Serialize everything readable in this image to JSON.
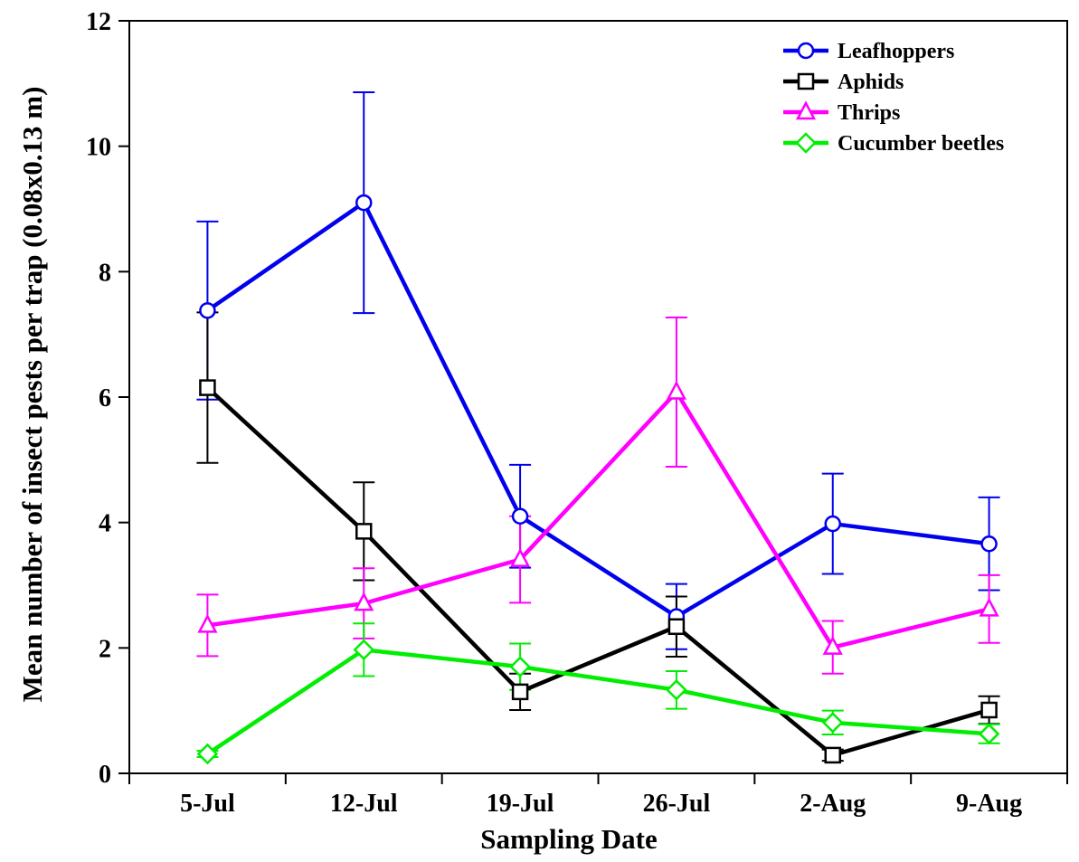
{
  "chart_data": {
    "type": "line",
    "title": "",
    "xlabel": "Sampling Date",
    "ylabel": "Mean number of insect pests per trap (0.08x0.13 m)",
    "categories": [
      "5-Jul",
      "12-Jul",
      "19-Jul",
      "26-Jul",
      "2-Aug",
      "9-Aug"
    ],
    "ylim": [
      0,
      12
    ],
    "yticks": [
      "0",
      "2",
      "4",
      "6",
      "8",
      "10",
      "12"
    ],
    "grid": false,
    "legend_position": "top-right",
    "series": [
      {
        "name": "Leafhoppers",
        "color": "#0000ee",
        "marker": "circle",
        "values": [
          7.38,
          9.1,
          4.1,
          2.5,
          3.98,
          3.66
        ],
        "error": [
          1.42,
          1.76,
          0.82,
          0.52,
          0.8,
          0.74
        ]
      },
      {
        "name": "Aphids",
        "color": "#000000",
        "marker": "square",
        "values": [
          6.15,
          3.86,
          1.3,
          2.34,
          0.29,
          1.01
        ],
        "error": [
          1.2,
          0.78,
          0.29,
          0.48,
          0.09,
          0.22
        ]
      },
      {
        "name": "Thrips",
        "color": "#ff00ff",
        "marker": "triangle",
        "values": [
          2.36,
          2.71,
          3.41,
          6.08,
          2.01,
          2.62
        ],
        "error": [
          0.49,
          0.56,
          0.69,
          1.19,
          0.42,
          0.54
        ]
      },
      {
        "name": "Cucumber beetles",
        "color": "#00ee00",
        "marker": "diamond",
        "values": [
          0.31,
          1.97,
          1.7,
          1.33,
          0.81,
          0.63
        ],
        "error": [
          0.05,
          0.42,
          0.37,
          0.3,
          0.19,
          0.15
        ]
      }
    ]
  }
}
